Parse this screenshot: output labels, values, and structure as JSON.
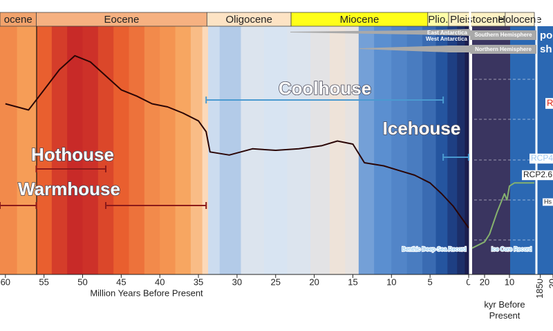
{
  "chart_data": [
    {
      "type": "line",
      "x_label": "Million Years Before Present",
      "xlim": [
        60.7,
        0
      ],
      "xticks": [
        60,
        55,
        50,
        45,
        40,
        35,
        30,
        25,
        20,
        15,
        10,
        5,
        0
      ],
      "x": [
        60,
        57,
        55,
        53,
        51,
        49,
        47,
        45,
        43,
        41,
        39,
        37,
        35,
        34,
        33.5,
        31,
        28,
        25,
        22,
        19,
        17,
        15,
        13.5,
        11,
        9,
        7,
        5,
        3.5,
        2,
        1,
        0
      ],
      "ylim": [
        0,
        16
      ],
      "series": [
        {
          "name": "Benthic Deep-Sea Record",
          "color": "#2a0505",
          "values": [
            11.0,
            10.6,
            11.9,
            13.2,
            14.1,
            13.7,
            12.8,
            11.9,
            11.5,
            11.0,
            10.8,
            10.4,
            9.9,
            9.2,
            7.9,
            7.7,
            8.1,
            8.0,
            8.1,
            8.3,
            8.6,
            8.4,
            7.2,
            7.0,
            6.7,
            6.4,
            5.9,
            5.2,
            4.4,
            3.7,
            3.0
          ]
        }
      ],
      "epochs": [
        {
          "label": "ocene",
          "start": 60.7,
          "end": 56,
          "color": "#f2a36c"
        },
        {
          "label": "Eocene",
          "start": 56,
          "end": 33.9,
          "color": "#f6b181"
        },
        {
          "label": "Oligocene",
          "start": 33.9,
          "end": 23,
          "color": "#fde3c4"
        },
        {
          "label": "Miocene",
          "start": 23,
          "end": 5.3,
          "color": "#ffff1a"
        },
        {
          "label": "Plio.",
          "start": 5.3,
          "end": 2.6,
          "color": "#ffffa8"
        },
        {
          "label": "Pleistocene",
          "start": 2.6,
          "end": 0,
          "color": "#fff2c4"
        }
      ],
      "annotations": [
        {
          "label": "Hothouse",
          "spans": [
            [
              56,
              47
            ]
          ]
        },
        {
          "label": "Warmhouse",
          "spans": [
            [
              60.7,
              56
            ],
            [
              47,
              34
            ]
          ]
        },
        {
          "label": "Coolhouse",
          "spans": [
            [
              34,
              3.3
            ]
          ]
        },
        {
          "label": "Icehouse",
          "spans": [
            [
              3.3,
              0
            ]
          ]
        }
      ]
    },
    {
      "type": "line",
      "x_label": "kyr Before Present",
      "xlim": [
        25,
        0
      ],
      "xticks": [
        20,
        10
      ],
      "x": [
        25,
        20,
        18,
        15,
        12,
        11,
        10,
        8,
        0
      ],
      "ylim": [
        0,
        16
      ],
      "series": [
        {
          "name": "Ice Core Record",
          "color": "#86b26e",
          "values": [
            1.7,
            2.1,
            2.6,
            4.0,
            5.2,
            4.8,
            5.7,
            5.9,
            5.9
          ]
        }
      ],
      "epochs": [
        {
          "label": "Holocene",
          "start": 11.7,
          "end": 0,
          "color": "#fdf1d2"
        }
      ]
    },
    {
      "type": "line",
      "xlim": [
        1820,
        2000
      ],
      "xticks": [
        1850,
        {
          "value": 2000,
          "label": "20"
        }
      ],
      "annotations": [
        "po",
        "sh",
        "R",
        "RCP4",
        "RCP2.6",
        "Hs"
      ]
    }
  ],
  "ice_sheets": [
    "East Antarctica",
    "West Antarctica",
    "Southern Hemisphere",
    "Northern Hemisphere"
  ]
}
